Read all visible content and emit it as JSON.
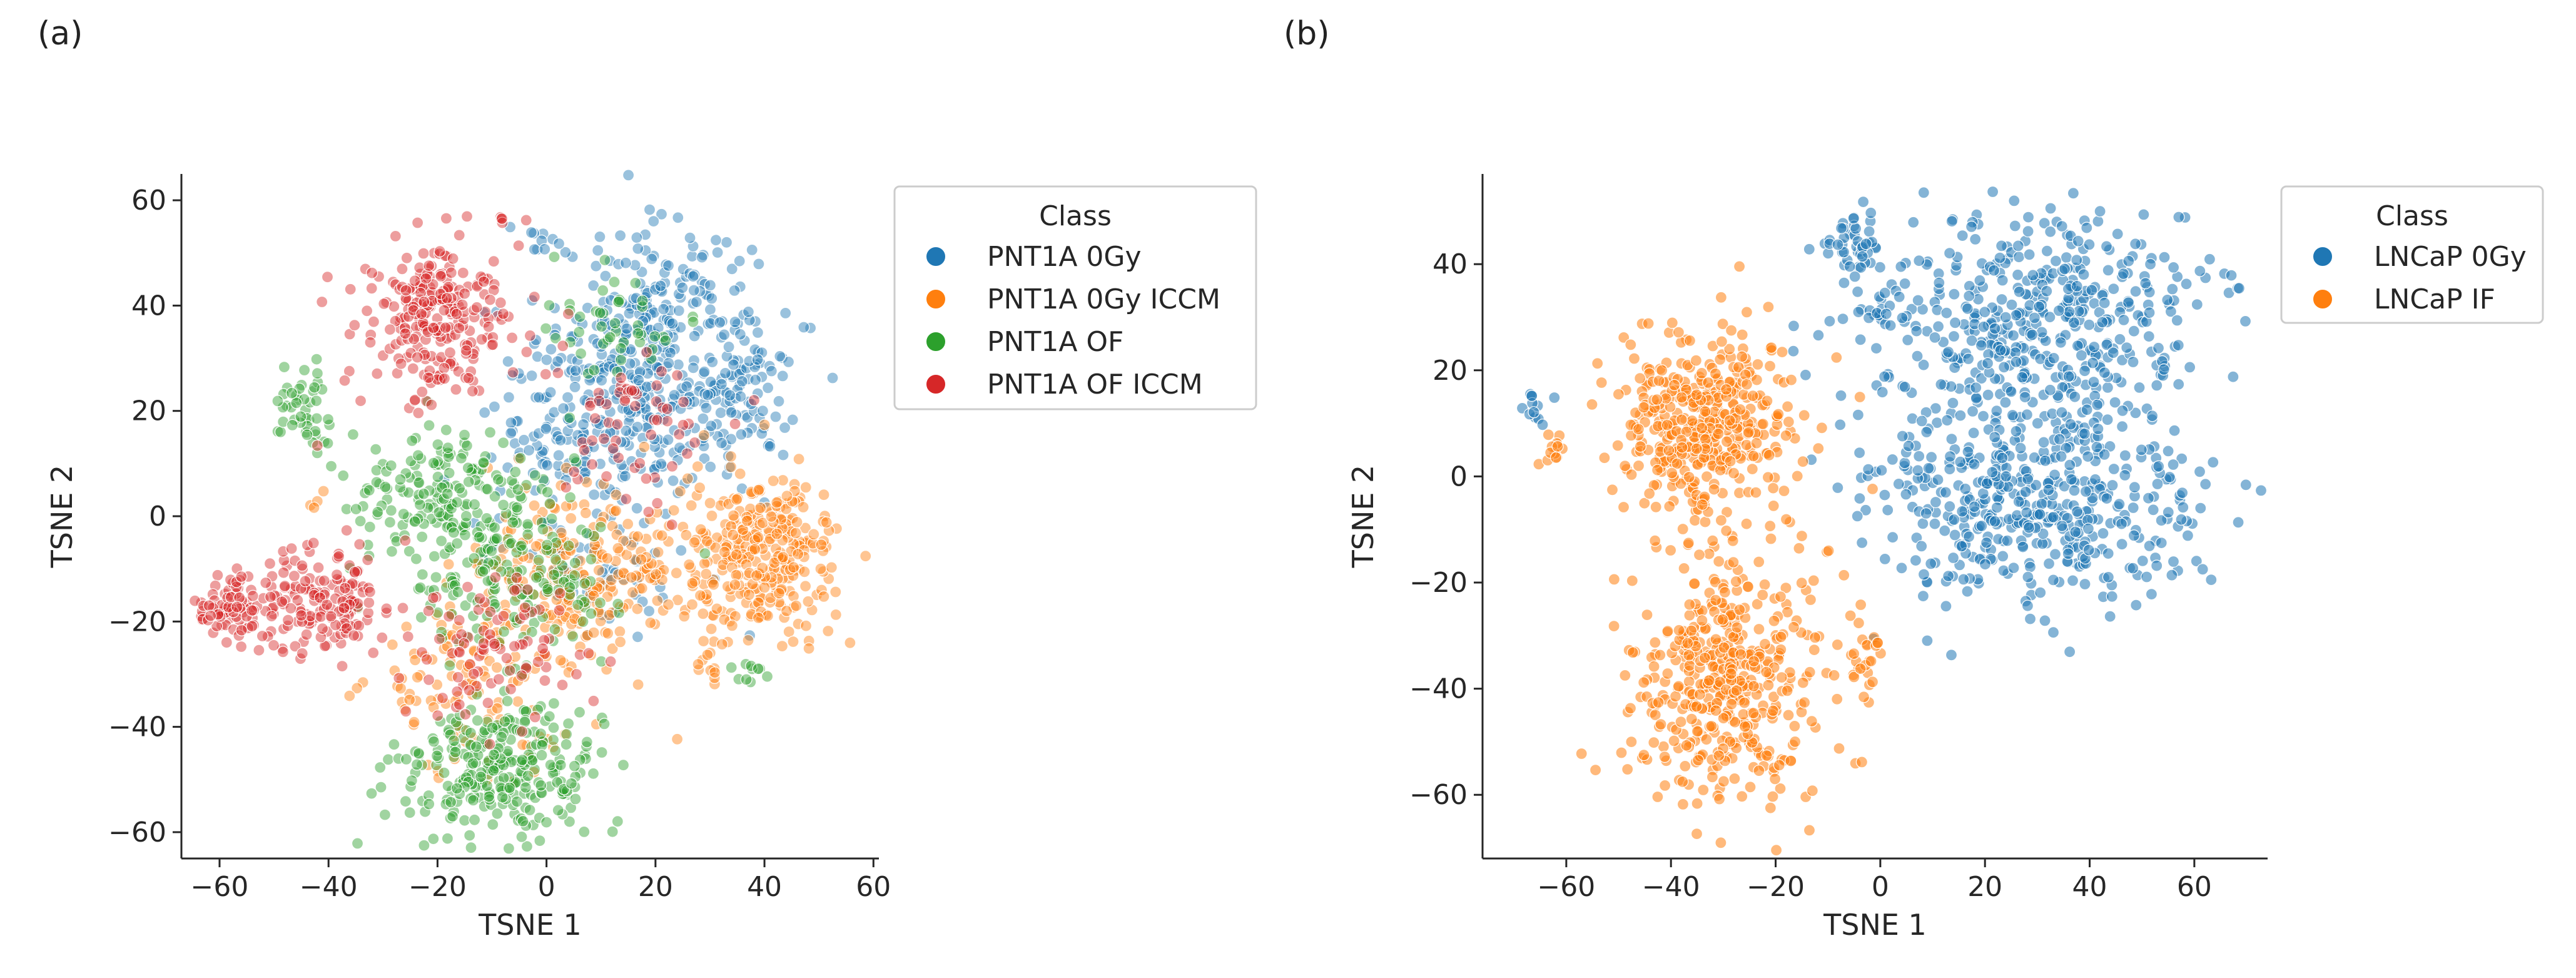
{
  "panels": {
    "a": "(a)",
    "b": "(b)"
  },
  "chart_data": [
    {
      "type": "scatter",
      "panel": "(a)",
      "xlabel": "TSNE 1",
      "ylabel": "TSNE 2",
      "xlim": [
        -67,
        61
      ],
      "ylim": [
        -65,
        65
      ],
      "xticks": [
        -60,
        -40,
        -20,
        0,
        20,
        40,
        60
      ],
      "yticks": [
        -60,
        -40,
        -20,
        0,
        20,
        40,
        60
      ],
      "grid": false,
      "legend": {
        "title": "Class",
        "position": "right"
      },
      "series": [
        {
          "name": "PNT1A 0Gy",
          "color": "#1f77b4",
          "clusters": [
            {
              "cx": 20,
              "cy": 35,
              "sx": 9,
              "sy": 10,
              "n": 260
            },
            {
              "cx": 10,
              "cy": 17,
              "sx": 10,
              "sy": 8,
              "n": 200
            },
            {
              "cx": 35,
              "cy": 25,
              "sx": 7,
              "sy": 8,
              "n": 90
            },
            {
              "cx": 8,
              "cy": -8,
              "sx": 10,
              "sy": 7,
              "n": 60
            },
            {
              "cx": -3,
              "cy": 52,
              "sx": 2,
              "sy": 2,
              "n": 10
            }
          ]
        },
        {
          "name": "PNT1A 0Gy ICCM",
          "color": "#ff7f0e",
          "clusters": [
            {
              "cx": 40,
              "cy": -8,
              "sx": 7,
              "sy": 8,
              "n": 300
            },
            {
              "cx": 8,
              "cy": -10,
              "sx": 11,
              "sy": 8,
              "n": 230
            },
            {
              "cx": -12,
              "cy": -30,
              "sx": 10,
              "sy": 9,
              "n": 120
            },
            {
              "cx": 30,
              "cy": -28,
              "sx": 2,
              "sy": 2,
              "n": 12
            },
            {
              "cx": -42,
              "cy": 3,
              "sx": 1,
              "sy": 1,
              "n": 4
            }
          ]
        },
        {
          "name": "PNT1A OF",
          "color": "#2ca02c",
          "clusters": [
            {
              "cx": -8,
              "cy": -48,
              "sx": 9,
              "sy": 6,
              "n": 280
            },
            {
              "cx": -18,
              "cy": 3,
              "sx": 9,
              "sy": 8,
              "n": 200
            },
            {
              "cx": -5,
              "cy": -12,
              "sx": 9,
              "sy": 7,
              "n": 140
            },
            {
              "cx": -45,
              "cy": 20,
              "sx": 3,
              "sy": 4,
              "n": 45
            },
            {
              "cx": 37,
              "cy": -30,
              "sx": 2,
              "sy": 1,
              "n": 10
            },
            {
              "cx": 12,
              "cy": 37,
              "sx": 6,
              "sy": 5,
              "n": 45
            }
          ]
        },
        {
          "name": "PNT1A OF ICCM",
          "color": "#d62728",
          "clusters": [
            {
              "cx": -20,
              "cy": 38,
              "sx": 7,
              "sy": 8,
              "n": 260
            },
            {
              "cx": -42,
              "cy": -17,
              "sx": 8,
              "sy": 5,
              "n": 180
            },
            {
              "cx": -59,
              "cy": -18,
              "sx": 3,
              "sy": 3,
              "n": 60
            },
            {
              "cx": -10,
              "cy": -25,
              "sx": 9,
              "sy": 7,
              "n": 90
            },
            {
              "cx": 15,
              "cy": 15,
              "sx": 8,
              "sy": 8,
              "n": 60
            },
            {
              "cx": -8,
              "cy": 57,
              "sx": 1,
              "sy": 1,
              "n": 4
            }
          ]
        }
      ]
    },
    {
      "type": "scatter",
      "panel": "(b)",
      "xlabel": "TSNE 1",
      "ylabel": "TSNE 2",
      "xlim": [
        -76,
        74
      ],
      "ylim": [
        -72,
        57
      ],
      "xticks": [
        -60,
        -40,
        -20,
        0,
        20,
        40,
        60
      ],
      "yticks": [
        -60,
        -40,
        -20,
        0,
        20,
        40
      ],
      "grid": false,
      "legend": {
        "title": "Class",
        "position": "right"
      },
      "series": [
        {
          "name": "LNCaP 0Gy",
          "color": "#1f77b4",
          "clusters": [
            {
              "cx": 30,
              "cy": 28,
              "sx": 16,
              "sy": 11,
              "n": 470
            },
            {
              "cx": 28,
              "cy": -5,
              "sx": 17,
              "sy": 10,
              "n": 470
            },
            {
              "cx": -5,
              "cy": 44,
              "sx": 3,
              "sy": 3,
              "n": 40
            },
            {
              "cx": -66,
              "cy": 13,
              "sx": 2,
              "sy": 2,
              "n": 12
            },
            {
              "cx": 1,
              "cy": 32,
              "sx": 2,
              "sy": 2,
              "n": 12
            }
          ]
        },
        {
          "name": "LNCaP IF",
          "color": "#ff7f0e",
          "clusters": [
            {
              "cx": -34,
              "cy": 10,
              "sx": 9,
              "sy": 9,
              "n": 420
            },
            {
              "cx": -28,
              "cy": -38,
              "sx": 9,
              "sy": 12,
              "n": 460
            },
            {
              "cx": -63,
              "cy": 5,
              "sx": 2,
              "sy": 2,
              "n": 12
            },
            {
              "cx": -3,
              "cy": -34,
              "sx": 2,
              "sy": 3,
              "n": 20
            }
          ]
        }
      ]
    }
  ]
}
